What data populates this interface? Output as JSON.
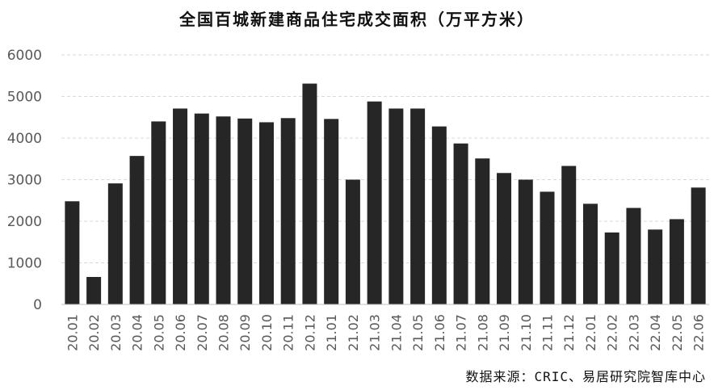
{
  "chart_data": {
    "type": "bar",
    "title": "全国百城新建商品住宅成交面积（万平方米）",
    "source": "数据来源：CRIC、易居研究院智库中心",
    "categories": [
      "20.01",
      "20.02",
      "20.03",
      "20.04",
      "20.05",
      "20.06",
      "20.07",
      "20.08",
      "20.09",
      "20.10",
      "20.11",
      "20.12",
      "21.01",
      "21.02",
      "21.03",
      "21.04",
      "21.05",
      "21.06",
      "21.07",
      "21.08",
      "21.09",
      "21.10",
      "21.11",
      "21.12",
      "22.01",
      "22.02",
      "22.03",
      "22.04",
      "22.05",
      "22.06"
    ],
    "values": [
      2480,
      660,
      2910,
      3570,
      4400,
      4710,
      4590,
      4520,
      4470,
      4380,
      4480,
      5310,
      4460,
      3000,
      4880,
      4710,
      4710,
      4280,
      3870,
      3510,
      3160,
      3000,
      2710,
      3330,
      2420,
      1730,
      2320,
      1800,
      2050,
      2810
    ],
    "ylim": [
      0,
      6000
    ],
    "yticks": [
      0,
      1000,
      2000,
      3000,
      4000,
      5000,
      6000
    ],
    "grid": true,
    "bar_color": "#262626",
    "grid_color": "#d9d9d9"
  }
}
